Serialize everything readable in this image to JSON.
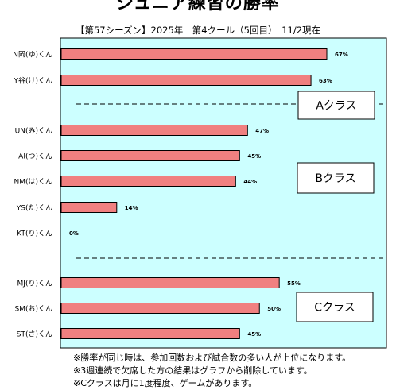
{
  "chart_data": {
    "type": "bar",
    "orientation": "horizontal",
    "title": "ジュニア練習の勝率",
    "subtitle": "【第57シーズン】2025年　第4クール（5回目）　11/2現在",
    "categories": [
      "N岡(ゆ)くん",
      "Y谷(け)くん",
      "UN(み)くん",
      "AI(つ)くん",
      "NM(は)くん",
      "YS(た)くん",
      "KT(り)くん",
      "MJ(り)くん",
      "SM(お)くん",
      "ST(さ)くん"
    ],
    "values": [
      67,
      63,
      47,
      45,
      44,
      14,
      0,
      55,
      50,
      45
    ],
    "value_labels": [
      "67%",
      "63%",
      "47%",
      "45%",
      "44%",
      "14%",
      "0%",
      "55%",
      "50%",
      "45%"
    ],
    "xlim": [
      0,
      80
    ],
    "groups": [
      {
        "label": "Aクラス",
        "start": 0,
        "count": 2
      },
      {
        "label": "Bクラス",
        "start": 2,
        "count": 5
      },
      {
        "label": "Cクラス",
        "start": 7,
        "count": 3
      }
    ],
    "colors": {
      "bar": "#f08080",
      "plot_bg": "#ccffff",
      "divider": "#000000"
    }
  },
  "notes": [
    "※勝率が同じ時は、参加回数および試合数の多い人が上位になります。",
    "※3週連続で欠席した方の結果はグラフから削除しています。",
    "※Cクラスは月に1度程度、ゲームがあります。"
  ]
}
